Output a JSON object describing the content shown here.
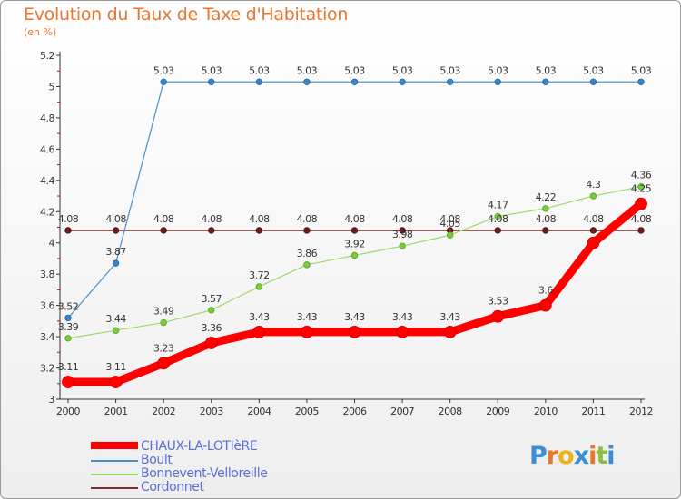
{
  "title": "Evolution du Taux de Taxe d'Habitation",
  "unit": "(en %)",
  "logo": {
    "text": "Proxiti",
    "colors": [
      "#3a8fd4",
      "#e8762d",
      "#f0b21a",
      "#3a8fd4",
      "#e8762d",
      "#8cbf3f",
      "#3a8fd4"
    ]
  },
  "chart_data": {
    "type": "line",
    "title": "Evolution du Taux de Taxe d'Habitation",
    "ylabel": "(en %)",
    "xlabel": "",
    "x": [
      "2000",
      "2001",
      "2002",
      "2003",
      "2004",
      "2005",
      "2006",
      "2007",
      "2008",
      "2009",
      "2010",
      "2011",
      "2012"
    ],
    "ylim": [
      3,
      5.2
    ],
    "yticks": [
      "3",
      "3.2",
      "3.4",
      "3.6",
      "3.8",
      "4",
      "4.2",
      "4.4",
      "4.6",
      "4.8",
      "5",
      "5.2"
    ],
    "grid": false,
    "legend_position": "bottom",
    "series": [
      {
        "name": "CHAUX-LA-LOTIèRE",
        "color": "#ff0000",
        "values": [
          3.11,
          3.11,
          3.23,
          3.36,
          3.43,
          3.43,
          3.43,
          3.43,
          3.43,
          3.53,
          3.6,
          4,
          4.25
        ],
        "labels": [
          "3.11",
          "3.11",
          "3.23",
          "3.36",
          "3.43",
          "3.43",
          "3.43",
          "3.43",
          "3.43",
          "3.53",
          "3.6",
          "",
          "4.25"
        ]
      },
      {
        "name": "Boult",
        "color": "#4a90c8",
        "values": [
          3.52,
          3.87,
          5.03,
          5.03,
          5.03,
          5.03,
          5.03,
          5.03,
          5.03,
          5.03,
          5.03,
          5.03,
          5.03
        ],
        "labels": [
          "3.52",
          "3.87",
          "5.03",
          "5.03",
          "5.03",
          "5.03",
          "5.03",
          "5.03",
          "5.03",
          "5.03",
          "5.03",
          "5.03",
          "5.03"
        ]
      },
      {
        "name": "Bonnevent-Velloreille",
        "color": "#9dd86a",
        "values": [
          3.39,
          3.44,
          3.49,
          3.57,
          3.72,
          3.86,
          3.92,
          3.98,
          4.05,
          4.17,
          4.22,
          4.3,
          4.36
        ],
        "labels": [
          "3.39",
          "3.44",
          "3.49",
          "3.57",
          "3.72",
          "3.86",
          "3.92",
          "3.98",
          "4.05",
          "4.17",
          "4.22",
          "4.3",
          "4.36"
        ]
      },
      {
        "name": "Cordonnet",
        "color": "#7a2e2e",
        "values": [
          4.08,
          4.08,
          4.08,
          4.08,
          4.08,
          4.08,
          4.08,
          4.08,
          4.08,
          4.08,
          4.08,
          4.08,
          4.08
        ],
        "labels": [
          "4.08",
          "4.08",
          "4.08",
          "4.08",
          "4.08",
          "4.08",
          "4.08",
          "4.08",
          "4.08",
          "4.08",
          "4.08",
          "4.08",
          "4.08"
        ]
      }
    ]
  }
}
